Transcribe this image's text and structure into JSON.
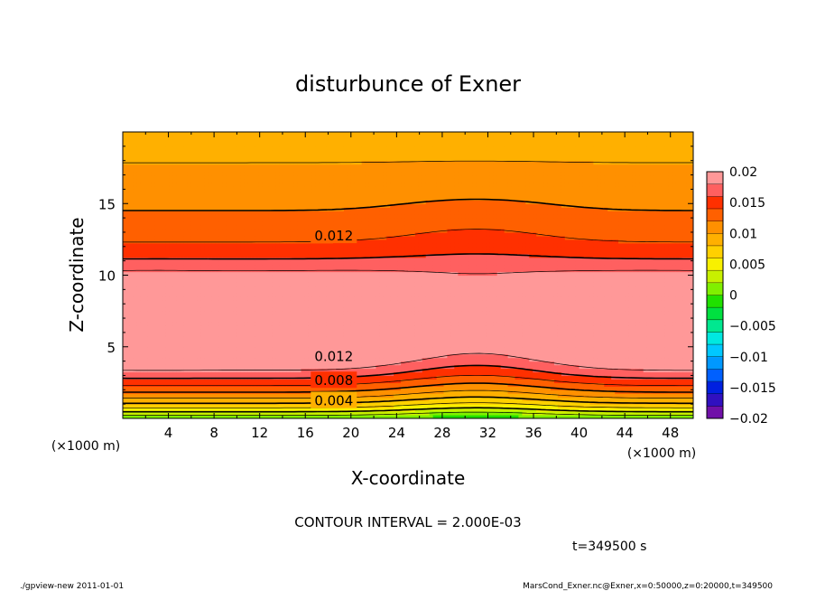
{
  "chart_data": {
    "type": "heatmap",
    "title": "disturbunce of Exner",
    "xlabel": "X-coordinate",
    "ylabel": "Z-coordinate",
    "x_unit_left": "(×1000 m)",
    "x_unit_right": "(×1000 m)",
    "xlim": [
      0,
      50
    ],
    "ylim": [
      0,
      20
    ],
    "x_ticks": [
      4,
      8,
      12,
      16,
      20,
      24,
      28,
      32,
      36,
      40,
      44,
      48
    ],
    "y_ticks": [
      5,
      10,
      15
    ],
    "colorbar": {
      "ticks": [
        0.02,
        0.015,
        0.01,
        0.005,
        0,
        -0.005,
        -0.01,
        -0.015,
        -0.02
      ],
      "tick_labels": [
        "0.02",
        "0.015",
        "0.01",
        "0.005",
        "0",
        "−0.005",
        "−0.01",
        "−0.015",
        "−0.02"
      ],
      "range": [
        -0.02,
        0.02
      ],
      "levels": 20,
      "colors": [
        "#7010a8",
        "#3010c0",
        "#0020e0",
        "#0060ff",
        "#0098ff",
        "#00c8ff",
        "#00e8e0",
        "#00e890",
        "#00e040",
        "#20e000",
        "#80f000",
        "#c8f000",
        "#f8f000",
        "#ffd000",
        "#ffb000",
        "#ff9000",
        "#ff6000",
        "#ff3000",
        "#ff6060",
        "#ff9898"
      ]
    },
    "contour_labels": [
      {
        "text": "0.012",
        "x": 18.5,
        "z": 12.8
      },
      {
        "text": "0.012",
        "x": 18.5,
        "z": 4.4
      },
      {
        "text": "0.008",
        "x": 18.5,
        "z": 2.7
      },
      {
        "text": "0.004",
        "x": 18.5,
        "z": 1.3
      }
    ],
    "contour_interval": "CONTOUR INTERVAL = 2.000E-03",
    "time_label": "t=349500 s"
  },
  "footer": {
    "left": "./gpview-new  2011-01-01",
    "right": "MarsCond_Exner.nc@Exner,x=0:50000,z=0:20000,t=349500"
  }
}
